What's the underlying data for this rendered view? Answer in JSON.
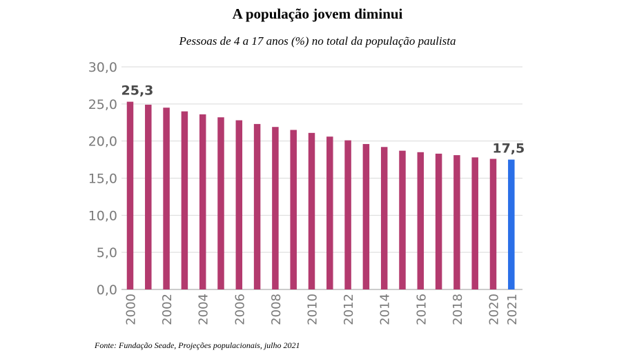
{
  "chart_data": {
    "type": "bar",
    "title": "A população jovem diminui",
    "subtitle": "Pessoas de 4 a 17 anos (%) no total da população paulista",
    "source": "Fonte: Fundação Seade, Projeções populacionais, julho 2021",
    "xlabel": "",
    "ylabel": "",
    "ylim": [
      0,
      30
    ],
    "yticks": [
      0,
      5,
      10,
      15,
      20,
      25,
      30
    ],
    "ytick_labels": [
      "0,0",
      "5,0",
      "10,0",
      "15,0",
      "20,0",
      "25,0",
      "30,0"
    ],
    "grid": true,
    "categories": [
      "2000",
      "2001",
      "2002",
      "2003",
      "2004",
      "2005",
      "2006",
      "2007",
      "2008",
      "2009",
      "2010",
      "2011",
      "2012",
      "2013",
      "2014",
      "2015",
      "2016",
      "2017",
      "2018",
      "2019",
      "2020",
      "2021"
    ],
    "xtick_labels": [
      "2000",
      "",
      "2002",
      "",
      "2004",
      "",
      "2006",
      "",
      "2008",
      "",
      "2010",
      "",
      "2012",
      "",
      "2014",
      "",
      "2016",
      "",
      "2018",
      "",
      "2020",
      "2021"
    ],
    "values": [
      25.3,
      24.9,
      24.5,
      24.0,
      23.6,
      23.2,
      22.8,
      22.3,
      21.9,
      21.5,
      21.1,
      20.6,
      20.1,
      19.6,
      19.2,
      18.7,
      18.5,
      18.3,
      18.1,
      17.8,
      17.6,
      17.5
    ],
    "data_labels": [
      {
        "index": 0,
        "text": "25,3"
      },
      {
        "index": 21,
        "text": "17,5"
      }
    ],
    "colors": {
      "bar": "#b33a6e",
      "highlight": "#2a6fe8",
      "grid": "#d9d9d9",
      "axis": "#9a9a9a"
    },
    "highlight_index": 21
  }
}
